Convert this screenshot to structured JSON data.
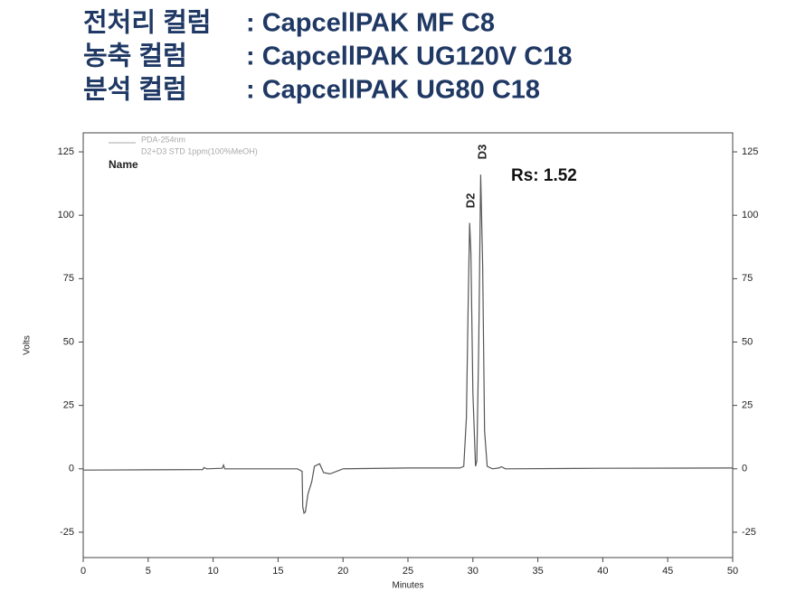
{
  "header": {
    "labels": [
      "전처리 컬럼",
      "농축 컬럼",
      "분석 컬럼"
    ],
    "values": [
      ": CapcellPAK MF C8",
      ": CapcellPAK UG120V C18",
      ": CapcellPAK UG80 C18"
    ]
  },
  "chart_data": {
    "type": "line",
    "xlabel": "Minutes",
    "ylabel": "Volts",
    "legend": [
      "PDA-254nm",
      "D2+D3 STD 1ppm(100%MeOH)"
    ],
    "legend_title": "Name",
    "annotations": [
      "D2",
      "D3",
      "Rs: 1.52"
    ],
    "x": [
      0,
      5,
      9.2,
      9.3,
      9.5,
      10.7,
      10.8,
      10.9,
      11.5,
      16.5,
      16.85,
      16.9,
      17.0,
      17.1,
      17.3,
      17.6,
      17.8,
      18.0,
      18.2,
      18.5,
      19.0,
      20,
      25,
      29,
      29.3,
      29.5,
      29.65,
      29.75,
      29.85,
      30.0,
      30.2,
      30.3,
      30.45,
      30.6,
      30.75,
      30.9,
      31.1,
      31.5,
      32.0,
      32.2,
      32.5,
      40,
      50
    ],
    "series": [
      {
        "name": "PDA-254nm",
        "color": "#555555",
        "values": [
          -0.5,
          -0.4,
          -0.3,
          0.5,
          0,
          0.2,
          1.5,
          0,
          0,
          0,
          -1,
          -15,
          -17.5,
          -17,
          -10,
          -5,
          1,
          1.5,
          2,
          -1.5,
          -2,
          0,
          0.3,
          0.3,
          1,
          20,
          70,
          97,
          85,
          30,
          1,
          3,
          50,
          116,
          80,
          15,
          1,
          0,
          0.3,
          0.8,
          0,
          0.2,
          0.3
        ]
      }
    ],
    "xlim": [
      0,
      50
    ],
    "xticks": [
      0,
      5,
      10,
      15,
      20,
      25,
      30,
      35,
      40,
      45,
      50
    ],
    "ylim": [
      -35,
      132.5
    ],
    "yticks": [
      -25,
      0,
      25,
      50,
      75,
      100,
      125
    ],
    "y2lim": [
      -35,
      132.5
    ],
    "y2ticks": [
      -25,
      0,
      25,
      50,
      75,
      100,
      125
    ]
  }
}
